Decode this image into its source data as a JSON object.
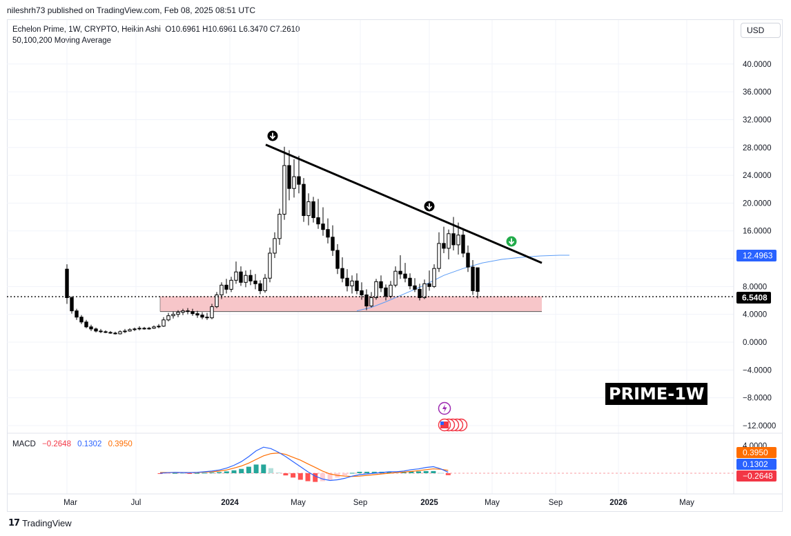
{
  "header": {
    "published": "nileshrh73 published on TradingView.com, Feb 08, 2025 08:51 UTC"
  },
  "legend": {
    "symbol_line": "Echelon Prime, 1W, CRYPTO, Heikin Ashi",
    "ohlc": "O10.6961 H10.6961 L6.3470 C7.2610",
    "ma_line": "50,100,200 Moving Average"
  },
  "currency_button": "USD",
  "macd_legend": {
    "label": "MACD",
    "hist": "−0.2648",
    "macd": "0.1302",
    "signal": "0.3950"
  },
  "footer": {
    "brand": "TradingView"
  },
  "watermark": "PRIME-1W",
  "colors": {
    "up": "#089981",
    "down": "#f23645",
    "candle": "#000000",
    "ma": "#5b9cf6",
    "zone": "#f7c6c9",
    "trend": "#000000",
    "signal": "#ff6d00",
    "macd": "#2962ff"
  },
  "chart_data": {
    "type": "candlestick",
    "title": "Echelon Prime, 1W, CRYPTO, Heikin Ashi",
    "y_axis": {
      "min": -12,
      "max": 40,
      "ticks": [
        "40.0000",
        "36.0000",
        "32.0000",
        "28.0000",
        "24.0000",
        "20.0000",
        "16.0000",
        "8.0000",
        "4.0000",
        "0.0000",
        "−4.0000",
        "−8.0000",
        "−12.0000"
      ]
    },
    "x_axis": {
      "ticks": [
        {
          "label": "Mar",
          "bold": false
        },
        {
          "label": "Jul",
          "bold": false
        },
        {
          "label": "2024",
          "bold": true
        },
        {
          "label": "May",
          "bold": false
        },
        {
          "label": "Sep",
          "bold": false
        },
        {
          "label": "2025",
          "bold": true
        },
        {
          "label": "May",
          "bold": false
        },
        {
          "label": "Sep",
          "bold": false
        },
        {
          "label": "2026",
          "bold": true
        },
        {
          "label": "May",
          "bold": false
        }
      ]
    },
    "price_labels": [
      {
        "value": "12.4963",
        "type": "ma"
      },
      {
        "value": "6.5408",
        "type": "last"
      }
    ],
    "macd_labels": [
      {
        "value": "0.3950",
        "type": "signal"
      },
      {
        "value": "0.1302",
        "type": "macd"
      },
      {
        "value": "−0.2648",
        "type": "hist"
      }
    ],
    "macd_axis_top": "4.0000",
    "last_price": 6.5408,
    "support_zone": [
      4.4,
      6.6
    ],
    "trendline": [
      {
        "week": 0,
        "price": 28.4
      },
      {
        "week": 39,
        "price": 11.4
      }
    ],
    "candles": [
      [
        10.5,
        11.2,
        5.5,
        6.4
      ],
      [
        6.4,
        6.6,
        4.1,
        4.5
      ],
      [
        4.5,
        4.8,
        3.2,
        3.6
      ],
      [
        3.6,
        3.9,
        2.6,
        2.9
      ],
      [
        2.9,
        3.2,
        2.0,
        2.2
      ],
      [
        2.2,
        2.5,
        1.6,
        1.9
      ],
      [
        1.9,
        2.1,
        1.4,
        1.6
      ],
      [
        1.6,
        1.9,
        1.3,
        1.5
      ],
      [
        1.5,
        1.7,
        1.3,
        1.4
      ],
      [
        1.4,
        1.6,
        1.2,
        1.3
      ],
      [
        1.3,
        1.5,
        1.1,
        1.2
      ],
      [
        1.2,
        1.7,
        1.1,
        1.5
      ],
      [
        1.5,
        1.9,
        1.3,
        1.6
      ],
      [
        1.6,
        2.0,
        1.5,
        1.8
      ],
      [
        1.8,
        2.1,
        1.6,
        1.9
      ],
      [
        1.9,
        2.3,
        1.7,
        2.0
      ],
      [
        2.0,
        2.2,
        1.8,
        1.9
      ],
      [
        1.9,
        2.2,
        1.8,
        2.0
      ],
      [
        2.0,
        2.4,
        1.9,
        2.2
      ],
      [
        2.2,
        2.6,
        2.0,
        2.3
      ],
      [
        2.3,
        3.6,
        2.2,
        3.2
      ],
      [
        3.2,
        4.2,
        3.0,
        3.8
      ],
      [
        3.8,
        4.4,
        3.4,
        4.0
      ],
      [
        4.0,
        4.6,
        3.6,
        4.3
      ],
      [
        4.3,
        4.8,
        3.9,
        4.5
      ],
      [
        4.5,
        4.9,
        4.0,
        4.4
      ],
      [
        4.4,
        4.8,
        3.8,
        4.1
      ],
      [
        4.1,
        4.5,
        3.5,
        3.9
      ],
      [
        3.9,
        4.3,
        3.3,
        3.6
      ],
      [
        3.6,
        4.2,
        3.2,
        3.5
      ],
      [
        3.5,
        5.5,
        3.3,
        5.1
      ],
      [
        5.1,
        7.2,
        4.9,
        6.8
      ],
      [
        6.8,
        8.6,
        6.2,
        8.2
      ],
      [
        8.2,
        9.1,
        7.0,
        7.6
      ],
      [
        7.6,
        9.4,
        7.2,
        8.9
      ],
      [
        8.9,
        11.6,
        8.4,
        10.1
      ],
      [
        10.1,
        10.9,
        8.1,
        8.6
      ],
      [
        8.6,
        10.3,
        7.9,
        9.6
      ],
      [
        9.6,
        10.4,
        8.2,
        8.8
      ],
      [
        8.8,
        9.8,
        7.6,
        8.4
      ],
      [
        8.4,
        8.9,
        6.9,
        7.4
      ],
      [
        7.4,
        9.8,
        7.1,
        9.2
      ],
      [
        9.2,
        13.6,
        8.6,
        12.8
      ],
      [
        12.8,
        15.8,
        12.1,
        14.9
      ],
      [
        14.9,
        19.2,
        14.0,
        18.4
      ],
      [
        18.4,
        28.1,
        17.6,
        25.4
      ],
      [
        25.4,
        27.6,
        20.4,
        22.1
      ],
      [
        22.1,
        26.3,
        20.8,
        23.8
      ],
      [
        23.8,
        26.8,
        21.4,
        22.7
      ],
      [
        22.7,
        23.6,
        17.3,
        18.2
      ],
      [
        18.2,
        21.4,
        16.8,
        20.2
      ],
      [
        20.2,
        20.9,
        17.2,
        17.9
      ],
      [
        17.9,
        20.6,
        16.3,
        17.0
      ],
      [
        17.0,
        19.4,
        15.3,
        16.2
      ],
      [
        16.2,
        17.8,
        14.2,
        15.1
      ],
      [
        15.1,
        16.8,
        12.4,
        13.2
      ],
      [
        13.2,
        14.1,
        9.8,
        10.6
      ],
      [
        10.6,
        12.2,
        8.6,
        9.2
      ],
      [
        9.2,
        10.5,
        7.3,
        8.1
      ],
      [
        8.1,
        9.6,
        7.0,
        8.8
      ],
      [
        8.8,
        9.9,
        6.9,
        7.4
      ],
      [
        7.4,
        8.6,
        6.1,
        6.8
      ],
      [
        6.8,
        7.6,
        4.6,
        5.2
      ],
      [
        5.2,
        7.2,
        5.0,
        6.4
      ],
      [
        6.4,
        9.1,
        6.1,
        8.7
      ],
      [
        8.7,
        9.6,
        7.2,
        7.8
      ],
      [
        7.8,
        8.3,
        6.0,
        6.6
      ],
      [
        6.6,
        8.8,
        6.3,
        8.2
      ],
      [
        8.2,
        10.9,
        7.9,
        10.2
      ],
      [
        10.2,
        12.5,
        9.1,
        9.8
      ],
      [
        9.8,
        11.4,
        8.6,
        9.2
      ],
      [
        9.2,
        9.9,
        7.6,
        8.1
      ],
      [
        8.1,
        9.2,
        7.2,
        7.6
      ],
      [
        7.6,
        8.4,
        6.0,
        6.4
      ],
      [
        6.4,
        9.0,
        6.2,
        8.4
      ],
      [
        8.4,
        10.3,
        7.4,
        8.0
      ],
      [
        8.0,
        11.2,
        7.8,
        10.6
      ],
      [
        10.6,
        15.8,
        10.1,
        14.2
      ],
      [
        14.2,
        16.6,
        12.8,
        13.5
      ],
      [
        13.5,
        16.2,
        11.9,
        15.6
      ],
      [
        15.6,
        18.0,
        13.2,
        14.0
      ],
      [
        14.0,
        17.2,
        12.6,
        15.4
      ],
      [
        15.4,
        16.4,
        12.2,
        12.8
      ],
      [
        12.8,
        13.9,
        10.1,
        10.8
      ],
      [
        10.8,
        11.8,
        6.8,
        7.4
      ],
      [
        10.7,
        10.7,
        6.3,
        7.3
      ]
    ],
    "ma_line": [
      [
        20,
        4.5
      ],
      [
        23,
        5.0
      ],
      [
        26,
        5.8
      ],
      [
        30,
        7.0
      ],
      [
        34,
        8.2
      ],
      [
        38,
        9.6
      ],
      [
        42,
        10.6
      ],
      [
        46,
        11.4
      ],
      [
        50,
        11.9
      ],
      [
        54,
        12.2
      ],
      [
        58,
        12.4
      ],
      [
        62,
        12.5
      ],
      [
        64,
        12.5
      ]
    ],
    "macd": {
      "macd_line": [
        0.0,
        0.08,
        0.12,
        0.1,
        0.09,
        0.12,
        0.2,
        0.3,
        0.45,
        0.7,
        1.1,
        1.6,
        2.3,
        3.1,
        3.6,
        3.4,
        2.9,
        2.3,
        1.6,
        0.9,
        0.2,
        -0.4,
        -0.8,
        -1.0,
        -0.9,
        -0.7,
        -0.4,
        -0.2,
        -0.1,
        0.0,
        0.1,
        0.2,
        0.2,
        0.3,
        0.5,
        0.6,
        0.8,
        0.9,
        0.6,
        0.13
      ],
      "signal_line": [
        0.1,
        0.1,
        0.1,
        0.1,
        0.1,
        0.1,
        0.15,
        0.2,
        0.3,
        0.45,
        0.7,
        1.0,
        1.4,
        1.9,
        2.4,
        2.7,
        2.8,
        2.6,
        2.2,
        1.8,
        1.3,
        0.8,
        0.3,
        -0.1,
        -0.3,
        -0.4,
        -0.45,
        -0.4,
        -0.3,
        -0.2,
        -0.1,
        0.0,
        0.1,
        0.15,
        0.25,
        0.35,
        0.5,
        0.6,
        0.55,
        0.395
      ],
      "histogram": [
        -0.1,
        -0.05,
        0.02,
        0.0,
        -0.01,
        0.02,
        0.05,
        0.1,
        0.15,
        0.25,
        0.4,
        0.6,
        0.9,
        1.2,
        1.2,
        0.7,
        0.1,
        -0.3,
        -0.6,
        -0.9,
        -1.1,
        -1.2,
        -1.1,
        -0.9,
        -0.6,
        -0.3,
        0.05,
        0.2,
        0.2,
        0.2,
        0.2,
        0.2,
        0.1,
        0.15,
        0.25,
        0.25,
        0.3,
        0.3,
        0.05,
        -0.2648
      ]
    }
  }
}
